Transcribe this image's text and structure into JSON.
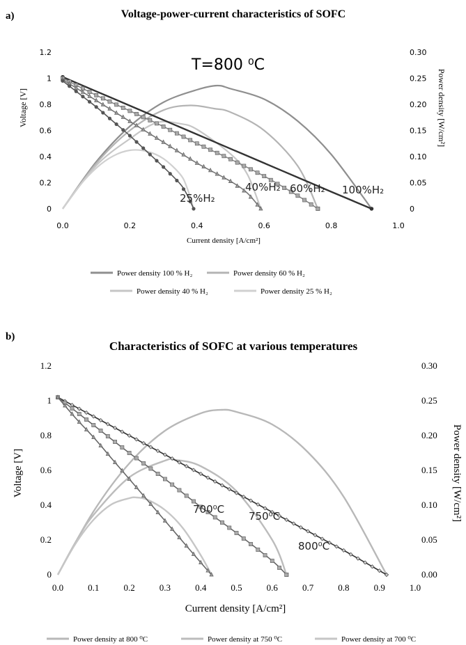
{
  "chart_data": [
    {
      "panel_label": "a)",
      "type": "line",
      "title": "Voltage-power-current characteristics of SOFC",
      "annotation": "T=800 ⁰C",
      "xlabel": "Current density [A/cm²]",
      "ylabel_left": "Voltage [V]",
      "ylabel_right": "Power density [W/cm²]",
      "xlim": [
        0,
        1.0
      ],
      "ylim_left": [
        0,
        1.2
      ],
      "ylim_right": [
        0,
        0.3
      ],
      "x_ticks": [
        "0.0",
        "0.2",
        "0.4",
        "0.6",
        "0.8",
        "1.0"
      ],
      "y_ticks_left": [
        "0",
        "0.2",
        "0.4",
        "0.6",
        "0.8",
        "1",
        "1.2"
      ],
      "y_ticks_right": [
        "0",
        "0.05",
        "0.10",
        "0.15",
        "0.20",
        "0.25",
        "0.30"
      ],
      "grid": false,
      "legend_position": "bottom",
      "curve_labels": [
        "25%H₂",
        "40%H₂",
        "60%H₂",
        "100%H₂"
      ],
      "voltage_series": [
        {
          "label": "100%H₂",
          "marker": "line",
          "color": "#333333",
          "x": [
            0,
            0.1,
            0.2,
            0.3,
            0.4,
            0.5,
            0.6,
            0.7,
            0.8,
            0.92
          ],
          "y": [
            1.01,
            0.9,
            0.79,
            0.68,
            0.57,
            0.46,
            0.35,
            0.24,
            0.13,
            0.0
          ]
        },
        {
          "label": "60%H₂",
          "marker": "square",
          "color": "#888888",
          "x": [
            0,
            0.1,
            0.2,
            0.3,
            0.4,
            0.5,
            0.6,
            0.7,
            0.76
          ],
          "y": [
            1.0,
            0.87,
            0.75,
            0.63,
            0.5,
            0.38,
            0.25,
            0.1,
            0.0
          ]
        },
        {
          "label": "40%H₂",
          "marker": "triangle",
          "color": "#777777",
          "x": [
            0,
            0.1,
            0.2,
            0.3,
            0.4,
            0.5,
            0.55,
            0.59
          ],
          "y": [
            0.99,
            0.83,
            0.67,
            0.51,
            0.35,
            0.21,
            0.12,
            0.0
          ]
        },
        {
          "label": "25%H₂",
          "marker": "circle",
          "color": "#555555",
          "x": [
            0,
            0.05,
            0.1,
            0.15,
            0.2,
            0.25,
            0.3,
            0.35,
            0.37,
            0.39
          ],
          "y": [
            0.98,
            0.88,
            0.78,
            0.67,
            0.56,
            0.44,
            0.32,
            0.19,
            0.11,
            0.0
          ]
        }
      ],
      "power_series": [
        {
          "name": "Power density 100 % H₂",
          "color": "#8f8f8f",
          "x": [
            0,
            0.1,
            0.2,
            0.3,
            0.4,
            0.46,
            0.5,
            0.6,
            0.7,
            0.8,
            0.92
          ],
          "y": [
            0,
            0.09,
            0.158,
            0.204,
            0.228,
            0.236,
            0.23,
            0.21,
            0.168,
            0.104,
            0.0
          ]
        },
        {
          "name": "Power density 60 % H₂",
          "color": "#b4b4b4",
          "x": [
            0,
            0.1,
            0.2,
            0.3,
            0.38,
            0.45,
            0.5,
            0.6,
            0.7,
            0.76
          ],
          "y": [
            0,
            0.087,
            0.15,
            0.189,
            0.198,
            0.192,
            0.185,
            0.15,
            0.082,
            0.0
          ]
        },
        {
          "name": "Power density 40 % H₂",
          "color": "#c6c6c6",
          "x": [
            0,
            0.1,
            0.2,
            0.28,
            0.35,
            0.4,
            0.5,
            0.55,
            0.59
          ],
          "y": [
            0,
            0.083,
            0.134,
            0.165,
            0.163,
            0.152,
            0.105,
            0.066,
            0.0
          ]
        },
        {
          "name": "Power density 25 % H₂",
          "color": "#d0d0d0",
          "x": [
            0,
            0.05,
            0.1,
            0.15,
            0.2,
            0.25,
            0.3,
            0.35,
            0.37,
            0.39
          ],
          "y": [
            0,
            0.044,
            0.078,
            0.101,
            0.112,
            0.11,
            0.096,
            0.066,
            0.041,
            0.0
          ]
        }
      ]
    },
    {
      "panel_label": "b)",
      "type": "line",
      "title": "Characteristics of SOFC at various temperatures",
      "xlabel": "Current density [A/cm²]",
      "ylabel_left": "Voltage [V]",
      "ylabel_right": "Power density [W/cm²]",
      "xlim": [
        0,
        1.0
      ],
      "ylim_left": [
        0,
        1.2
      ],
      "ylim_right": [
        0,
        0.3
      ],
      "x_ticks": [
        "0.0",
        "0.1",
        "0.2",
        "0.3",
        "0.4",
        "0.5",
        "0.6",
        "0.7",
        "0.8",
        "0.9",
        "1.0"
      ],
      "y_ticks_left": [
        "0",
        "0.2",
        "0.4",
        "0.6",
        "0.8",
        "1",
        "1.2"
      ],
      "y_ticks_right": [
        "0.00",
        "0.05",
        "0.10",
        "0.15",
        "0.20",
        "0.25",
        "0.30"
      ],
      "grid": false,
      "legend_position": "bottom",
      "curve_labels": [
        "800⁰C",
        "750⁰C",
        "700⁰C"
      ],
      "voltage_series": [
        {
          "label": "800⁰C",
          "marker": "diamond",
          "color": "#333333",
          "x": [
            0,
            0.1,
            0.2,
            0.3,
            0.4,
            0.5,
            0.6,
            0.7,
            0.8,
            0.92
          ],
          "y": [
            1.02,
            0.91,
            0.8,
            0.69,
            0.58,
            0.47,
            0.36,
            0.25,
            0.14,
            0.0
          ]
        },
        {
          "label": "750⁰C",
          "marker": "square",
          "color": "#666666",
          "x": [
            0,
            0.1,
            0.2,
            0.3,
            0.4,
            0.5,
            0.6,
            0.64
          ],
          "y": [
            1.02,
            0.86,
            0.7,
            0.55,
            0.39,
            0.24,
            0.08,
            0.0
          ]
        },
        {
          "label": "700⁰C",
          "marker": "triangle",
          "color": "#666666",
          "x": [
            0,
            0.05,
            0.1,
            0.15,
            0.2,
            0.25,
            0.3,
            0.35,
            0.4,
            0.43
          ],
          "y": [
            1.02,
            0.9,
            0.79,
            0.67,
            0.55,
            0.43,
            0.31,
            0.19,
            0.07,
            0.0
          ]
        }
      ],
      "power_series": [
        {
          "name": "Power density at 800 ⁰C",
          "color": "#b8b8b8",
          "x": [
            0,
            0.1,
            0.2,
            0.3,
            0.4,
            0.46,
            0.5,
            0.6,
            0.7,
            0.8,
            0.92
          ],
          "y": [
            0,
            0.091,
            0.16,
            0.207,
            0.232,
            0.237,
            0.234,
            0.216,
            0.176,
            0.112,
            0.0
          ]
        },
        {
          "name": "Power density at 750 ⁰C",
          "color": "#bcbcbc",
          "x": [
            0,
            0.05,
            0.1,
            0.2,
            0.3,
            0.33,
            0.4,
            0.5,
            0.6,
            0.64
          ],
          "y": [
            0,
            0.047,
            0.086,
            0.14,
            0.164,
            0.165,
            0.156,
            0.12,
            0.05,
            0.0
          ]
        },
        {
          "name": "Power density at 700 ⁰C",
          "color": "#c6c6c6",
          "x": [
            0,
            0.05,
            0.1,
            0.15,
            0.2,
            0.22,
            0.25,
            0.3,
            0.35,
            0.4,
            0.43
          ],
          "y": [
            0,
            0.045,
            0.079,
            0.101,
            0.11,
            0.111,
            0.108,
            0.093,
            0.067,
            0.028,
            0.0
          ]
        }
      ]
    }
  ]
}
